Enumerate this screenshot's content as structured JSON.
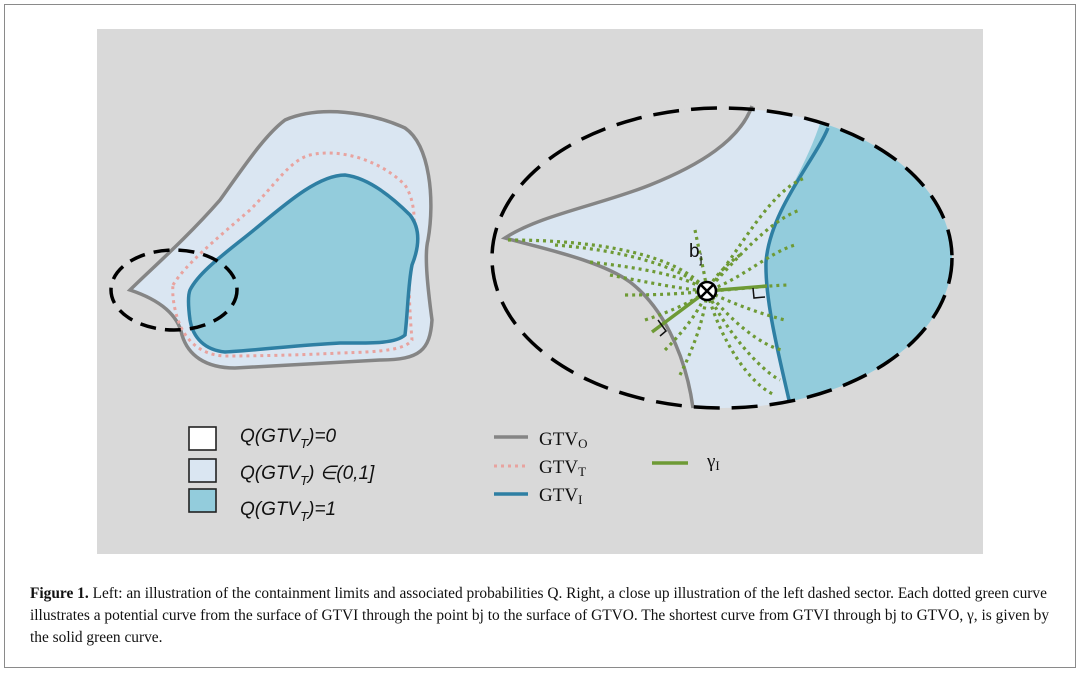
{
  "figure": {
    "colors": {
      "panel": "#d9d9d9",
      "light_blue": "#dae6f2",
      "teal_fill": "#93ccdc",
      "gtv_o": "#858585",
      "gtv_t": "#e8a39f",
      "gtv_i": "#2e7fa3",
      "gamma": "#6e9a35",
      "dashed": "#000000"
    },
    "legend_q": {
      "q0": "Q(GTVT)=0",
      "qrange": "Q(GTVT) ∈(0,1]",
      "q1": "Q(GTVT)=1"
    },
    "legend_lines": {
      "gtv_o": "GTVO",
      "gtv_t": "GTVT",
      "gtv_i": "GTVI",
      "gamma": "γI"
    },
    "bj_label": "bj"
  },
  "caption": {
    "label": "Figure 1.",
    "text": "Left: an illustration of the containment limits and associated probabilities Q. Right, a close up illustration of the left dashed sector. Each dotted green curve illustrates a potential curve from the surface of GTVI through the point bj to the surface of GTVO. The shortest curve from GTVI through bj to GTVO, γ, is given by the solid green curve."
  }
}
